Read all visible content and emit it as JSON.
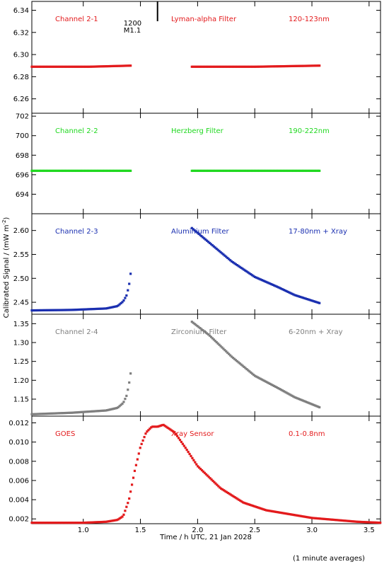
{
  "chart_data": [
    {
      "type": "scatter",
      "panel_labels": {
        "left": "Channel 2-1",
        "center": "Lyman-alpha Filter",
        "right": "120-123nm"
      },
      "color": "#e31a1c",
      "ylim": [
        6.247,
        6.348
      ],
      "yticks": [
        "6.26",
        "6.28",
        "6.30",
        "6.32",
        "6.34"
      ],
      "series": [
        {
          "x": [
            0.55,
            1.05,
            1.42
          ],
          "y": [
            6.289,
            6.289,
            6.29
          ]
        },
        {
          "x": [
            1.95,
            2.5,
            3.07
          ],
          "y": [
            6.289,
            6.289,
            6.29
          ]
        }
      ],
      "marker_label": {
        "time": 1.6,
        "lines": [
          "1200",
          "M1.1"
        ]
      }
    },
    {
      "type": "scatter",
      "panel_labels": {
        "left": "Channel 2-2",
        "center": "Herzberg Filter",
        "right": "190-222nm"
      },
      "color": "#1fd81f",
      "ylim": [
        692.0,
        702.3
      ],
      "yticks": [
        "694",
        "696",
        "698",
        "700",
        "702"
      ],
      "series": [
        {
          "x": [
            0.55,
            1.05,
            1.42
          ],
          "y": [
            696.4,
            696.4,
            696.4
          ]
        },
        {
          "x": [
            1.95,
            2.5,
            3.07
          ],
          "y": [
            696.4,
            696.4,
            696.4
          ]
        }
      ]
    },
    {
      "type": "scatter",
      "panel_labels": {
        "left": "Channel 2-3",
        "center": "Aluminium Filter",
        "right": "17-80nm + Xray"
      },
      "color": "#1a2fb0",
      "ylim": [
        2.425,
        2.635
      ],
      "yticks": [
        "2.45",
        "2.50",
        "2.55",
        "2.60"
      ],
      "series": [
        {
          "x": [
            0.55,
            0.9,
            1.1,
            1.2,
            1.3,
            1.35,
            1.38,
            1.4,
            1.42
          ],
          "y": [
            2.433,
            2.434,
            2.436,
            2.437,
            2.442,
            2.452,
            2.465,
            2.485,
            2.52
          ]
        },
        {
          "x": [
            1.95,
            2.1,
            2.3,
            2.5,
            2.7,
            2.85,
            3.07
          ],
          "y": [
            2.605,
            2.575,
            2.535,
            2.503,
            2.482,
            2.465,
            2.448
          ]
        }
      ]
    },
    {
      "type": "scatter",
      "panel_labels": {
        "left": "Channel 2-4",
        "center": "Zirconium Filter",
        "right": "6-20nm + Xray"
      },
      "color": "#7f7f7f",
      "ylim": [
        1.105,
        1.375
      ],
      "yticks": [
        "1.15",
        "1.20",
        "1.25",
        "1.30",
        "1.35"
      ],
      "series": [
        {
          "x": [
            0.55,
            0.9,
            1.1,
            1.2,
            1.3,
            1.35,
            1.38,
            1.4,
            1.42
          ],
          "y": [
            1.11,
            1.114,
            1.118,
            1.12,
            1.127,
            1.14,
            1.16,
            1.19,
            1.23
          ]
        },
        {
          "x": [
            1.95,
            2.1,
            2.3,
            2.5,
            2.7,
            2.85,
            3.07
          ],
          "y": [
            1.355,
            1.32,
            1.262,
            1.212,
            1.18,
            1.155,
            1.128
          ]
        }
      ]
    },
    {
      "type": "scatter",
      "panel_labels": {
        "left": "GOES",
        "center": "Xray Sensor",
        "right": "0.1-0.8nm"
      },
      "color": "#e31a1c",
      "ylim": [
        0.0015,
        0.0127
      ],
      "yticks": [
        "0.002",
        "0.004",
        "0.006",
        "0.008",
        "0.010",
        "0.012"
      ],
      "xticks": [
        "1.0",
        "1.5",
        "2.0",
        "2.5",
        "3.0",
        "3.5"
      ],
      "series": [
        {
          "x": [
            0.55,
            1.0,
            1.2,
            1.3,
            1.35,
            1.4,
            1.45,
            1.5,
            1.55,
            1.6,
            1.65,
            1.7,
            1.8,
            1.9,
            2.0,
            2.2,
            2.4,
            2.6,
            2.8,
            3.0,
            3.2,
            3.4,
            3.6
          ],
          "y": [
            0.0016,
            0.0016,
            0.0017,
            0.0019,
            0.0023,
            0.004,
            0.007,
            0.0095,
            0.011,
            0.0116,
            0.0116,
            0.0118,
            0.011,
            0.0093,
            0.0075,
            0.0052,
            0.0037,
            0.0029,
            0.0025,
            0.0021,
            0.0019,
            0.0017,
            0.0016
          ]
        }
      ]
    }
  ],
  "axes": {
    "xlim": [
      0.55,
      3.6
    ],
    "xlabel": "Time / h UTC, 21 Jan 2028",
    "ylabel": "Calibrated Signal / (mW m",
    "ylabel_sup": "-2",
    "ylabel_close": ")"
  },
  "footer_note": "(1 minute averages)"
}
